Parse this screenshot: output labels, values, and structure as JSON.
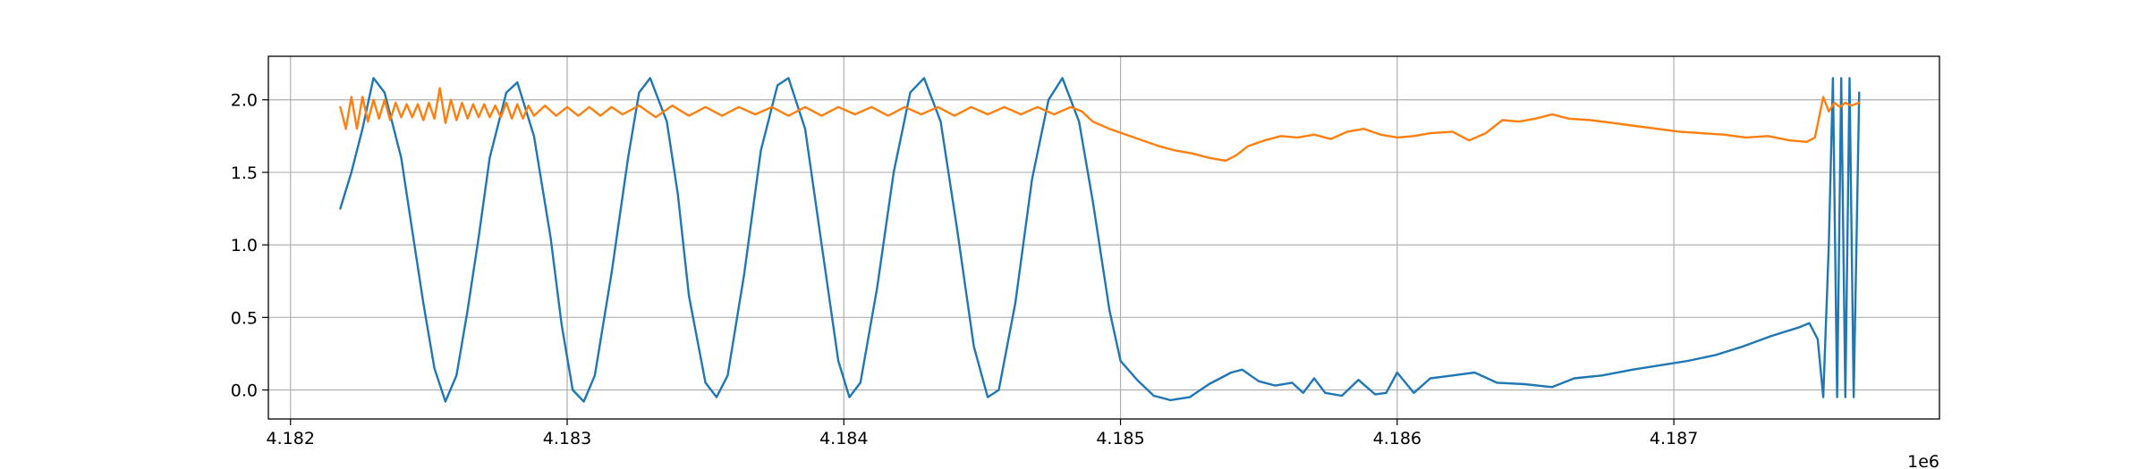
{
  "chart_data": {
    "type": "line",
    "title": "",
    "xlabel": "",
    "ylabel": "",
    "x_offset_label": "1e6",
    "xlim": [
      4181920,
      4187960
    ],
    "ylim": [
      -0.2,
      2.3
    ],
    "grid": true,
    "x_ticks": [
      {
        "value": 4182000,
        "label": "4.182"
      },
      {
        "value": 4183000,
        "label": "4.183"
      },
      {
        "value": 4184000,
        "label": "4.184"
      },
      {
        "value": 4185000,
        "label": "4.185"
      },
      {
        "value": 4186000,
        "label": "4.186"
      },
      {
        "value": 4187000,
        "label": "4.187"
      }
    ],
    "y_ticks": [
      {
        "value": 0.0,
        "label": "0.0"
      },
      {
        "value": 0.5,
        "label": "0.5"
      },
      {
        "value": 1.0,
        "label": "1.0"
      },
      {
        "value": 1.5,
        "label": "1.5"
      },
      {
        "value": 2.0,
        "label": "2.0"
      }
    ],
    "series": [
      {
        "color": "#1f77b4",
        "points": [
          [
            4182180,
            1.25
          ],
          [
            4182220,
            1.5
          ],
          [
            4182260,
            1.8
          ],
          [
            4182300,
            2.15
          ],
          [
            4182340,
            2.05
          ],
          [
            4182400,
            1.6
          ],
          [
            4182440,
            1.1
          ],
          [
            4182480,
            0.6
          ],
          [
            4182520,
            0.15
          ],
          [
            4182560,
            -0.08
          ],
          [
            4182600,
            0.1
          ],
          [
            4182640,
            0.55
          ],
          [
            4182680,
            1.05
          ],
          [
            4182720,
            1.6
          ],
          [
            4182780,
            2.05
          ],
          [
            4182820,
            2.12
          ],
          [
            4182880,
            1.75
          ],
          [
            4182940,
            1.05
          ],
          [
            4182980,
            0.45
          ],
          [
            4183020,
            0.0
          ],
          [
            4183060,
            -0.08
          ],
          [
            4183100,
            0.1
          ],
          [
            4183160,
            0.8
          ],
          [
            4183220,
            1.6
          ],
          [
            4183260,
            2.05
          ],
          [
            4183300,
            2.15
          ],
          [
            4183360,
            1.85
          ],
          [
            4183400,
            1.35
          ],
          [
            4183440,
            0.65
          ],
          [
            4183500,
            0.05
          ],
          [
            4183540,
            -0.05
          ],
          [
            4183580,
            0.1
          ],
          [
            4183640,
            0.8
          ],
          [
            4183700,
            1.65
          ],
          [
            4183760,
            2.1
          ],
          [
            4183800,
            2.15
          ],
          [
            4183860,
            1.8
          ],
          [
            4183920,
            1.0
          ],
          [
            4183980,
            0.2
          ],
          [
            4184020,
            -0.05
          ],
          [
            4184060,
            0.05
          ],
          [
            4184120,
            0.7
          ],
          [
            4184180,
            1.5
          ],
          [
            4184240,
            2.05
          ],
          [
            4184290,
            2.15
          ],
          [
            4184350,
            1.85
          ],
          [
            4184410,
            1.1
          ],
          [
            4184470,
            0.3
          ],
          [
            4184520,
            -0.05
          ],
          [
            4184560,
            0.0
          ],
          [
            4184620,
            0.6
          ],
          [
            4184680,
            1.45
          ],
          [
            4184740,
            2.0
          ],
          [
            4184790,
            2.15
          ],
          [
            4184850,
            1.85
          ],
          [
            4184900,
            1.3
          ],
          [
            4184960,
            0.55
          ],
          [
            4185000,
            0.2
          ],
          [
            4185060,
            0.07
          ],
          [
            4185120,
            -0.04
          ],
          [
            4185180,
            -0.07
          ],
          [
            4185250,
            -0.05
          ],
          [
            4185320,
            0.04
          ],
          [
            4185400,
            0.12
          ],
          [
            4185440,
            0.14
          ],
          [
            4185500,
            0.06
          ],
          [
            4185560,
            0.03
          ],
          [
            4185620,
            0.05
          ],
          [
            4185660,
            -0.02
          ],
          [
            4185700,
            0.08
          ],
          [
            4185740,
            -0.02
          ],
          [
            4185800,
            -0.04
          ],
          [
            4185860,
            0.07
          ],
          [
            4185920,
            -0.03
          ],
          [
            4185960,
            -0.02
          ],
          [
            4186000,
            0.12
          ],
          [
            4186060,
            -0.02
          ],
          [
            4186120,
            0.08
          ],
          [
            4186200,
            0.1
          ],
          [
            4186280,
            0.12
          ],
          [
            4186360,
            0.05
          ],
          [
            4186460,
            0.04
          ],
          [
            4186560,
            0.02
          ],
          [
            4186640,
            0.08
          ],
          [
            4186740,
            0.1
          ],
          [
            4186850,
            0.14
          ],
          [
            4186950,
            0.17
          ],
          [
            4187050,
            0.2
          ],
          [
            4187150,
            0.24
          ],
          [
            4187250,
            0.3
          ],
          [
            4187350,
            0.37
          ],
          [
            4187450,
            0.43
          ],
          [
            4187490,
            0.46
          ],
          [
            4187520,
            0.35
          ],
          [
            4187540,
            -0.05
          ],
          [
            4187560,
            1.0
          ],
          [
            4187575,
            2.15
          ],
          [
            4187590,
            -0.05
          ],
          [
            4187605,
            2.15
          ],
          [
            4187620,
            -0.05
          ],
          [
            4187635,
            2.15
          ],
          [
            4187650,
            -0.05
          ],
          [
            4187670,
            2.05
          ]
        ]
      },
      {
        "color": "#ff7f0e",
        "points": [
          [
            4182180,
            1.95
          ],
          [
            4182200,
            1.8
          ],
          [
            4182220,
            2.02
          ],
          [
            4182240,
            1.8
          ],
          [
            4182260,
            2.02
          ],
          [
            4182280,
            1.85
          ],
          [
            4182300,
            2.0
          ],
          [
            4182320,
            1.87
          ],
          [
            4182340,
            2.0
          ],
          [
            4182360,
            1.86
          ],
          [
            4182380,
            1.98
          ],
          [
            4182400,
            1.88
          ],
          [
            4182420,
            1.97
          ],
          [
            4182440,
            1.88
          ],
          [
            4182460,
            1.97
          ],
          [
            4182480,
            1.86
          ],
          [
            4182500,
            1.98
          ],
          [
            4182520,
            1.87
          ],
          [
            4182540,
            2.08
          ],
          [
            4182560,
            1.84
          ],
          [
            4182580,
            2.0
          ],
          [
            4182600,
            1.86
          ],
          [
            4182620,
            1.98
          ],
          [
            4182640,
            1.87
          ],
          [
            4182660,
            1.97
          ],
          [
            4182680,
            1.88
          ],
          [
            4182700,
            1.97
          ],
          [
            4182720,
            1.88
          ],
          [
            4182740,
            1.96
          ],
          [
            4182760,
            1.88
          ],
          [
            4182780,
            1.98
          ],
          [
            4182800,
            1.87
          ],
          [
            4182820,
            1.97
          ],
          [
            4182840,
            1.87
          ],
          [
            4182860,
            1.96
          ],
          [
            4182880,
            1.89
          ],
          [
            4182920,
            1.96
          ],
          [
            4182960,
            1.89
          ],
          [
            4183000,
            1.95
          ],
          [
            4183040,
            1.89
          ],
          [
            4183080,
            1.95
          ],
          [
            4183120,
            1.89
          ],
          [
            4183160,
            1.95
          ],
          [
            4183200,
            1.9
          ],
          [
            4183260,
            1.96
          ],
          [
            4183320,
            1.88
          ],
          [
            4183380,
            1.96
          ],
          [
            4183440,
            1.89
          ],
          [
            4183500,
            1.95
          ],
          [
            4183560,
            1.89
          ],
          [
            4183620,
            1.95
          ],
          [
            4183680,
            1.9
          ],
          [
            4183740,
            1.95
          ],
          [
            4183800,
            1.89
          ],
          [
            4183860,
            1.95
          ],
          [
            4183920,
            1.89
          ],
          [
            4183980,
            1.95
          ],
          [
            4184040,
            1.9
          ],
          [
            4184100,
            1.95
          ],
          [
            4184160,
            1.89
          ],
          [
            4184220,
            1.95
          ],
          [
            4184280,
            1.9
          ],
          [
            4184340,
            1.95
          ],
          [
            4184400,
            1.89
          ],
          [
            4184460,
            1.95
          ],
          [
            4184520,
            1.9
          ],
          [
            4184580,
            1.95
          ],
          [
            4184640,
            1.9
          ],
          [
            4184700,
            1.95
          ],
          [
            4184760,
            1.9
          ],
          [
            4184820,
            1.95
          ],
          [
            4184860,
            1.92
          ],
          [
            4184900,
            1.85
          ],
          [
            4184960,
            1.8
          ],
          [
            4185020,
            1.76
          ],
          [
            4185080,
            1.72
          ],
          [
            4185140,
            1.68
          ],
          [
            4185200,
            1.65
          ],
          [
            4185260,
            1.63
          ],
          [
            4185320,
            1.6
          ],
          [
            4185380,
            1.58
          ],
          [
            4185420,
            1.62
          ],
          [
            4185460,
            1.68
          ],
          [
            4185520,
            1.72
          ],
          [
            4185580,
            1.75
          ],
          [
            4185640,
            1.74
          ],
          [
            4185700,
            1.76
          ],
          [
            4185760,
            1.73
          ],
          [
            4185820,
            1.78
          ],
          [
            4185880,
            1.8
          ],
          [
            4185940,
            1.76
          ],
          [
            4186000,
            1.74
          ],
          [
            4186060,
            1.75
          ],
          [
            4186120,
            1.77
          ],
          [
            4186200,
            1.78
          ],
          [
            4186260,
            1.72
          ],
          [
            4186320,
            1.77
          ],
          [
            4186380,
            1.86
          ],
          [
            4186440,
            1.85
          ],
          [
            4186500,
            1.87
          ],
          [
            4186560,
            1.9
          ],
          [
            4186620,
            1.87
          ],
          [
            4186700,
            1.86
          ],
          [
            4186780,
            1.84
          ],
          [
            4186860,
            1.82
          ],
          [
            4186940,
            1.8
          ],
          [
            4187020,
            1.78
          ],
          [
            4187100,
            1.77
          ],
          [
            4187180,
            1.76
          ],
          [
            4187260,
            1.74
          ],
          [
            4187340,
            1.75
          ],
          [
            4187420,
            1.72
          ],
          [
            4187480,
            1.71
          ],
          [
            4187510,
            1.74
          ],
          [
            4187540,
            2.02
          ],
          [
            4187560,
            1.92
          ],
          [
            4187580,
            1.98
          ],
          [
            4187600,
            1.95
          ],
          [
            4187620,
            1.98
          ],
          [
            4187640,
            1.96
          ],
          [
            4187670,
            1.98
          ]
        ]
      }
    ]
  }
}
